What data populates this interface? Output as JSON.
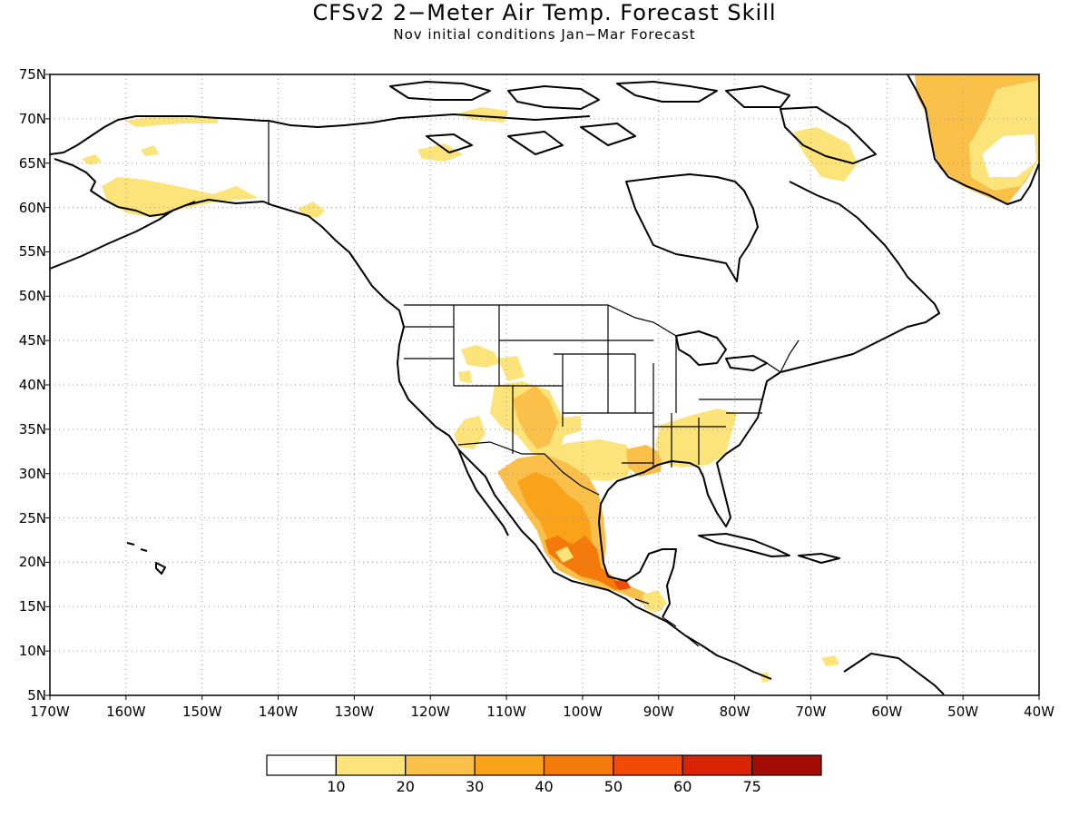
{
  "title": "CFSv2 2−Meter Air Temp. Forecast Skill",
  "subtitle": "Nov initial conditions   Jan−Mar Forecast",
  "lat_labels": [
    "75N",
    "70N",
    "65N",
    "60N",
    "55N",
    "50N",
    "45N",
    "40N",
    "35N",
    "30N",
    "25N",
    "20N",
    "15N",
    "10N",
    "5N"
  ],
  "lon_labels": [
    "170W",
    "160W",
    "150W",
    "140W",
    "130W",
    "120W",
    "110W",
    "100W",
    "90W",
    "80W",
    "70W",
    "60W",
    "50W",
    "40W"
  ],
  "colorbar": {
    "colors": [
      "#ffffff",
      "#fde47a",
      "#fbc04a",
      "#f9a21a",
      "#f47a0b",
      "#f24b05",
      "#d82405",
      "#a40d05"
    ],
    "labels": [
      "10",
      "20",
      "30",
      "40",
      "50",
      "60",
      "75"
    ]
  },
  "map": {
    "projection": "cylindrical-equidistant",
    "lon_range": [
      -170,
      -40
    ],
    "lat_range": [
      5,
      75
    ],
    "grid": "dotted"
  },
  "regions": [
    {
      "name": "alaska-north",
      "level": 1
    },
    {
      "name": "alaska-south",
      "level": 1
    },
    {
      "name": "yukon-coast",
      "level": 1
    },
    {
      "name": "canada-arctic",
      "level": 1
    },
    {
      "name": "baffin",
      "level": 1
    },
    {
      "name": "greenland",
      "level": 2
    },
    {
      "name": "greenland-interior",
      "level": 1
    },
    {
      "name": "greenland-core",
      "level": 0
    },
    {
      "name": "us-west",
      "level": 1
    },
    {
      "name": "four-corners",
      "level": 2
    },
    {
      "name": "texas-gulf",
      "level": 1
    },
    {
      "name": "southeast",
      "level": 1
    },
    {
      "name": "mexico",
      "level": 2
    },
    {
      "name": "mexico-core",
      "level": 3
    },
    {
      "name": "mexico-south",
      "level": 4
    },
    {
      "name": "mexico-hotspot",
      "level": 5
    }
  ]
}
